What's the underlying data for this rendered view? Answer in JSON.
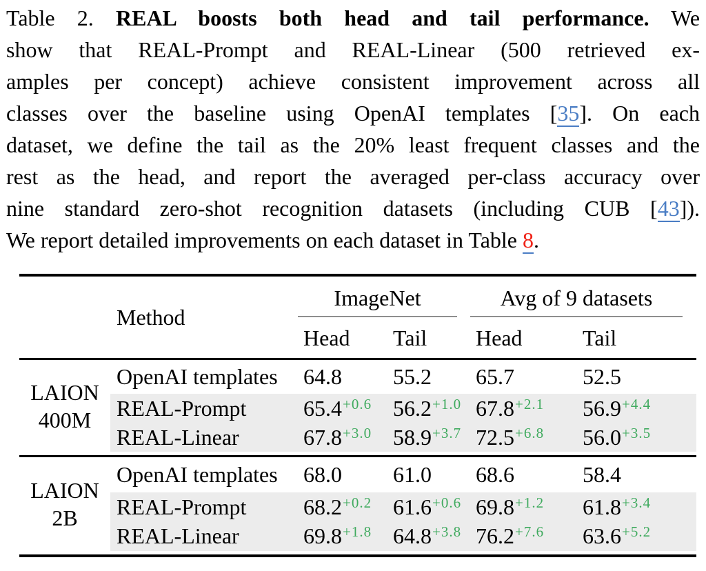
{
  "caption": {
    "line1": {
      "prefix": "Table 2.",
      "bold": "REAL boosts both head and tail performance.",
      "suffix": "We"
    },
    "line2": "show that REAL-Prompt and REAL-Linear (500 retrieved ex-",
    "line3": "amples per concept) achieve consistent improvement across all",
    "line4": {
      "pre": "classes over the baseline using OpenAI templates [",
      "cite": "35",
      "post": "].",
      "tail": "On each"
    },
    "line5": "dataset, we define the tail as the 20% least frequent classes and the",
    "line6": "rest as the head, and report the averaged per-class accuracy over",
    "line7": {
      "pre": "nine standard zero-shot recognition datasets (including CUB [",
      "cite": "43",
      "post": "])."
    },
    "line8": {
      "pre": "We report detailed improvements on each dataset in Table",
      "ref": "8",
      "post": "."
    }
  },
  "table": {
    "header": {
      "method": "Method",
      "group1": "ImageNet",
      "group2": "Avg of 9 datasets",
      "sub1": "Head",
      "sub2": "Tail",
      "sub3": "Head",
      "sub4": "Tail"
    },
    "blocks": [
      {
        "label1": "LAION",
        "label2": "400M",
        "rows": [
          {
            "method": "OpenAI templates",
            "v1": "64.8",
            "v2": "55.2",
            "v3": "65.7",
            "v4": "52.5"
          },
          {
            "method": "REAL-Prompt",
            "v1": "65.4",
            "d1": "+0.6",
            "v2": "56.2",
            "d2": "+1.0",
            "v3": "67.8",
            "d3": "+2.1",
            "v4": "56.9",
            "d4": "+4.4"
          },
          {
            "method": "REAL-Linear",
            "v1": "67.8",
            "d1": "+3.0",
            "v2": "58.9",
            "d2": "+3.7",
            "v3": "72.5",
            "d3": "+6.8",
            "v4": "56.0",
            "d4": "+3.5"
          }
        ]
      },
      {
        "label1": "LAION",
        "label2": "2B",
        "rows": [
          {
            "method": "OpenAI templates",
            "v1": "68.0",
            "v2": "61.0",
            "v3": "68.6",
            "v4": "58.4"
          },
          {
            "method": "REAL-Prompt",
            "v1": "68.2",
            "d1": "+0.2",
            "v2": "61.6",
            "d2": "+0.6",
            "v3": "69.8",
            "d3": "+1.2",
            "v4": "61.8",
            "d4": "+3.4"
          },
          {
            "method": "REAL-Linear",
            "v1": "69.8",
            "d1": "+1.8",
            "v2": "64.8",
            "d2": "+3.8",
            "v3": "76.2",
            "d3": "+7.6",
            "v4": "63.6",
            "d4": "+5.2"
          }
        ]
      }
    ]
  },
  "colors": {
    "delta_green": "#3FAA5E",
    "highlight_gray": "#ECECEC",
    "link_blue": "#4A7DC4",
    "ref_red": "#F02318",
    "cmidrule_gray": "#8E8E8E"
  }
}
